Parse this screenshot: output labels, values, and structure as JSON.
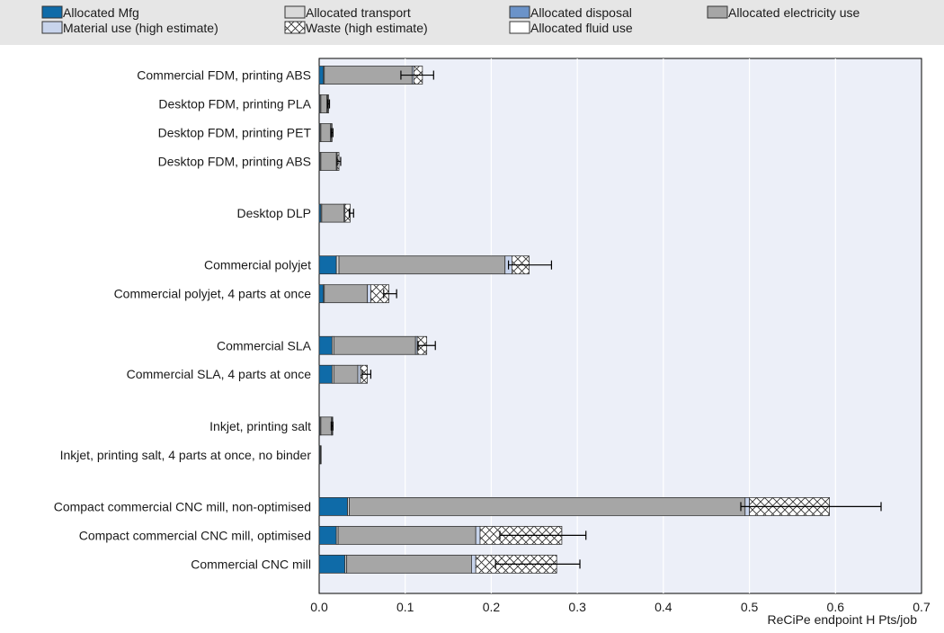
{
  "chart_data": {
    "type": "bar",
    "orientation": "horizontal",
    "stacked": true,
    "xlabel": "ReCiPe endpoint H Pts/job",
    "xlim": [
      0,
      0.7
    ],
    "xticks": [
      "0.0",
      "0.1",
      "0.2",
      "0.3",
      "0.4",
      "0.5",
      "0.6",
      "0.7"
    ],
    "grid": true,
    "legend_position": "top",
    "legend": [
      {
        "key": "mfg",
        "label": "Allocated Mfg",
        "color": "#0f6ba8",
        "pattern": "solid"
      },
      {
        "key": "transport",
        "label": "Allocated transport",
        "color": "#d9d9d9",
        "pattern": "solid"
      },
      {
        "key": "disposal",
        "label": "Allocated disposal",
        "color": "#6b93c9",
        "pattern": "solid"
      },
      {
        "key": "electricity",
        "label": "Allocated electricity use",
        "color": "#a6a6a6",
        "pattern": "solid"
      },
      {
        "key": "material",
        "label": "Material use (high estimate)",
        "color": "#c8d4ec",
        "pattern": "solid"
      },
      {
        "key": "waste",
        "label": "Waste (high estimate)",
        "color": "#ffffff",
        "pattern": "crosshatch"
      },
      {
        "key": "fluid",
        "label": "Allocated fluid use",
        "color": "#ffffff",
        "pattern": "solid"
      }
    ],
    "categories": [
      "Commercial FDM, printing ABS",
      "Desktop FDM, printing PLA",
      "Desktop FDM, printing PET",
      "Desktop FDM, printing ABS",
      "Desktop DLP",
      "Commercial polyjet",
      "Commercial polyjet, 4 parts at once",
      "Commercial SLA",
      "Commercial SLA, 4 parts at once",
      "Inkjet, printing salt",
      "Inkjet, printing salt, 4 parts at once, no binder",
      "Compact commercial CNC mill, non-optimised",
      "Compact commercial CNC mill, optimised",
      "Commercial CNC mill"
    ],
    "groups": [
      [
        0,
        1,
        2,
        3
      ],
      [
        4
      ],
      [
        5,
        6
      ],
      [
        7,
        8
      ],
      [
        9,
        10
      ],
      [
        11,
        12,
        13
      ]
    ],
    "series": [
      {
        "key": "mfg",
        "values": [
          0.005,
          0.001,
          0.001,
          0.001,
          0.002,
          0.02,
          0.005,
          0.015,
          0.015,
          0.001,
          0.001,
          0.033,
          0.02,
          0.03
        ]
      },
      {
        "key": "transport",
        "values": [
          0.001,
          0.001,
          0.001,
          0.001,
          0.001,
          0.003,
          0.001,
          0.002,
          0.002,
          0.001,
          0.0005,
          0.002,
          0.002,
          0.002
        ]
      },
      {
        "key": "disposal",
        "values": [
          0,
          0,
          0,
          0,
          0,
          0,
          0,
          0,
          0,
          0,
          0,
          0,
          0,
          0
        ]
      },
      {
        "key": "electricity",
        "values": [
          0.102,
          0.007,
          0.011,
          0.018,
          0.026,
          0.193,
          0.05,
          0.095,
          0.028,
          0.012,
          0.0005,
          0.46,
          0.16,
          0.145
        ]
      },
      {
        "key": "material",
        "values": [
          0.002,
          0.001,
          0.001,
          0.001,
          0.001,
          0.008,
          0.004,
          0.002,
          0.003,
          0.001,
          0,
          0.005,
          0.005,
          0.005
        ]
      },
      {
        "key": "waste",
        "values": [
          0.01,
          0.001,
          0.001,
          0.002,
          0.006,
          0.02,
          0.021,
          0.011,
          0.008,
          0.0005,
          0,
          0.093,
          0.095,
          0.094
        ]
      },
      {
        "key": "fluid",
        "values": [
          0,
          0,
          0,
          0,
          0,
          0,
          0,
          0,
          0,
          0,
          0,
          0,
          0,
          0
        ]
      }
    ],
    "error_bars": [
      [
        0.095,
        0.133
      ],
      [
        0.01,
        0.012
      ],
      [
        0.014,
        0.016
      ],
      [
        0.021,
        0.025
      ],
      [
        0.035,
        0.04
      ],
      [
        0.22,
        0.27
      ],
      [
        0.075,
        0.09
      ],
      [
        0.115,
        0.135
      ],
      [
        0.05,
        0.06
      ],
      [
        0.014,
        0.016
      ],
      null,
      [
        0.49,
        0.653
      ],
      [
        0.21,
        0.31
      ],
      [
        0.205,
        0.303
      ]
    ]
  }
}
